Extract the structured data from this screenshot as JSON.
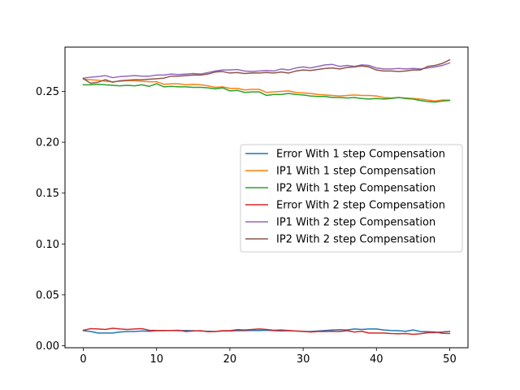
{
  "chart_data": {
    "type": "line",
    "title": "",
    "xlabel": "",
    "ylabel": "",
    "xlim": [
      -2.5,
      52.5
    ],
    "ylim": [
      -0.002,
      0.2935
    ],
    "xticks": [
      0,
      10,
      20,
      30,
      40,
      50
    ],
    "xtick_labels": [
      "0",
      "10",
      "20",
      "30",
      "40",
      "50"
    ],
    "yticks": [
      0.0,
      0.05,
      0.1,
      0.15,
      0.2,
      0.25
    ],
    "ytick_labels": [
      "0.00",
      "0.05",
      "0.10",
      "0.15",
      "0.20",
      "0.25"
    ],
    "grid": false,
    "legend_position": "center-right",
    "x": [
      0,
      1,
      2,
      3,
      4,
      5,
      6,
      7,
      8,
      9,
      10,
      11,
      12,
      13,
      14,
      15,
      16,
      17,
      18,
      19,
      20,
      21,
      22,
      23,
      24,
      25,
      26,
      27,
      28,
      29,
      30,
      31,
      32,
      33,
      34,
      35,
      36,
      37,
      38,
      39,
      40,
      41,
      42,
      43,
      44,
      45,
      46,
      47,
      48,
      49,
      50
    ],
    "series": [
      {
        "name": "Error With 1 step Compensation",
        "color": "#1f77b4",
        "values": [
          0.0148,
          0.014,
          0.0125,
          0.0125,
          0.0125,
          0.0135,
          0.014,
          0.014,
          0.0145,
          0.0142,
          0.0148,
          0.0148,
          0.015,
          0.0148,
          0.015,
          0.0148,
          0.0145,
          0.0142,
          0.014,
          0.0145,
          0.0145,
          0.0148,
          0.0148,
          0.015,
          0.015,
          0.0152,
          0.0148,
          0.0145,
          0.0148,
          0.0145,
          0.014,
          0.014,
          0.0145,
          0.015,
          0.0155,
          0.0158,
          0.0155,
          0.0165,
          0.016,
          0.0165,
          0.0165,
          0.0155,
          0.015,
          0.0148,
          0.0142,
          0.0155,
          0.014,
          0.0138,
          0.0135,
          0.0122,
          0.012
        ]
      },
      {
        "name": "IP1 With 1 step Compensation",
        "color": "#ff7f0e",
        "values": [
          0.262,
          0.2615,
          0.261,
          0.26,
          0.2595,
          0.26,
          0.2605,
          0.2605,
          0.26,
          0.2595,
          0.2595,
          0.257,
          0.2575,
          0.2575,
          0.2565,
          0.257,
          0.2565,
          0.2555,
          0.254,
          0.2545,
          0.253,
          0.253,
          0.2515,
          0.252,
          0.252,
          0.249,
          0.2495,
          0.25,
          0.2505,
          0.249,
          0.2485,
          0.248,
          0.247,
          0.2465,
          0.246,
          0.2455,
          0.246,
          0.2465,
          0.246,
          0.246,
          0.2455,
          0.244,
          0.2435,
          0.244,
          0.2435,
          0.243,
          0.2425,
          0.2415,
          0.2405,
          0.2415,
          0.2415
        ]
      },
      {
        "name": "IP2 With 1 step Compensation",
        "color": "#2ca02c",
        "values": [
          0.2565,
          0.2565,
          0.257,
          0.2565,
          0.256,
          0.2555,
          0.256,
          0.2555,
          0.2565,
          0.255,
          0.2575,
          0.2545,
          0.255,
          0.2545,
          0.2545,
          0.254,
          0.254,
          0.2535,
          0.2525,
          0.2535,
          0.2505,
          0.251,
          0.249,
          0.2495,
          0.2495,
          0.246,
          0.247,
          0.247,
          0.248,
          0.247,
          0.2465,
          0.2455,
          0.245,
          0.245,
          0.244,
          0.244,
          0.2435,
          0.244,
          0.243,
          0.2425,
          0.243,
          0.2425,
          0.243,
          0.244,
          0.243,
          0.2425,
          0.241,
          0.24,
          0.2395,
          0.2405,
          0.241
        ]
      },
      {
        "name": "Error With 2 step Compensation",
        "color": "#d62728",
        "values": [
          0.0152,
          0.0168,
          0.0165,
          0.016,
          0.0172,
          0.0165,
          0.016,
          0.0165,
          0.0168,
          0.0152,
          0.015,
          0.015,
          0.015,
          0.0152,
          0.014,
          0.0145,
          0.0148,
          0.0138,
          0.014,
          0.0148,
          0.0148,
          0.0158,
          0.0155,
          0.016,
          0.0165,
          0.016,
          0.0152,
          0.0155,
          0.015,
          0.0145,
          0.0142,
          0.0135,
          0.014,
          0.014,
          0.0142,
          0.014,
          0.0148,
          0.0135,
          0.0142,
          0.0125,
          0.0125,
          0.0125,
          0.012,
          0.0118,
          0.012,
          0.0112,
          0.0118,
          0.0128,
          0.013,
          0.0135,
          0.014
        ]
      },
      {
        "name": "IP1 With 2 step Compensation",
        "color": "#9467bd",
        "values": [
          0.263,
          0.264,
          0.2645,
          0.2655,
          0.2635,
          0.2645,
          0.265,
          0.2655,
          0.265,
          0.265,
          0.266,
          0.266,
          0.267,
          0.2665,
          0.267,
          0.2675,
          0.267,
          0.2685,
          0.27,
          0.271,
          0.271,
          0.2715,
          0.27,
          0.2695,
          0.27,
          0.2705,
          0.27,
          0.272,
          0.271,
          0.273,
          0.274,
          0.273,
          0.2745,
          0.276,
          0.2765,
          0.2745,
          0.2755,
          0.2745,
          0.276,
          0.2755,
          0.273,
          0.272,
          0.272,
          0.2725,
          0.272,
          0.2725,
          0.272,
          0.273,
          0.274,
          0.2755,
          0.278
        ]
      },
      {
        "name": "IP2 With 2 step Compensation",
        "color": "#8c564b",
        "values": [
          0.2625,
          0.258,
          0.259,
          0.2615,
          0.259,
          0.2605,
          0.261,
          0.2615,
          0.2615,
          0.262,
          0.2625,
          0.263,
          0.265,
          0.265,
          0.2655,
          0.266,
          0.266,
          0.267,
          0.269,
          0.2695,
          0.268,
          0.2685,
          0.2675,
          0.268,
          0.268,
          0.2685,
          0.268,
          0.269,
          0.268,
          0.27,
          0.271,
          0.2705,
          0.2715,
          0.2725,
          0.273,
          0.272,
          0.2735,
          0.274,
          0.275,
          0.274,
          0.271,
          0.27,
          0.27,
          0.2695,
          0.27,
          0.271,
          0.271,
          0.2745,
          0.2755,
          0.2775,
          0.281
        ]
      }
    ]
  }
}
